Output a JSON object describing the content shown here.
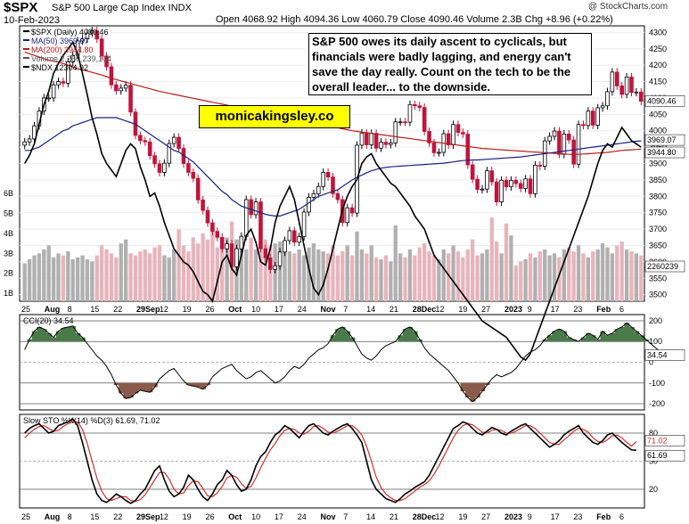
{
  "header": {
    "symbol": "$SPX",
    "name": "S&P 500 Large Cap Index INDX",
    "date": "10-Feb-2023",
    "ohlc": "Open 4068.92  High 4094.36  Low 4060.79  Close 4090.46  Volume 2.3B  Chg +8.96 (+0.22%)",
    "brand": "@ StockCharts.com"
  },
  "annotation": {
    "text": "S&P 500 owes its daily ascent to cyclicals, but financials were badly lagging, and energy can't save the day really. Count on the tech to be the  overall leader... to the downside.",
    "site": "monicakingsley.co"
  },
  "legend": {
    "main": "$SPX (Daily) 4090.46",
    "ma50": "MA(50) 3969.07",
    "ma200": "MA(200) 3944.80",
    "volume": "Volume 2,260,239,104",
    "ndx": "$NDX 12304.92",
    "cci": "CCI(20) 34.54",
    "sto": "Slow STO %K(14) %D(3) 61.69, 71.02"
  },
  "colors": {
    "up": "#000000",
    "down": "#c0143c",
    "ma50": "#1a237e",
    "ma200": "#b71c1c",
    "vol_down": "#e8b4bc",
    "vol_up": "#b0b0b0",
    "cci_fill_pos": "#4a7a4a",
    "cci_fill_neg": "#8a5a4a",
    "sto_k": "#000000",
    "sto_d": "#d32f2f",
    "site_bg": "#ffff00"
  },
  "chart_data": [
    {
      "type": "candlestick",
      "title": "$SPX (Daily)",
      "y_ticks": [
        "4300",
        "4250",
        "4200",
        "4150",
        "4100",
        "4050",
        "4000",
        "3950",
        "3900",
        "3850",
        "3800",
        "3750",
        "3700",
        "3650",
        "3600",
        "3550",
        "3500"
      ],
      "volume_ticks": [
        "6B",
        "5B",
        "4B",
        "3B",
        "2B",
        "1B"
      ],
      "last_price_label": "4090.46",
      "ma50_label": "3969.07",
      "ma200_label": "3944.80",
      "volume_label": "2260239",
      "ylim": [
        3480,
        4320
      ],
      "x_labels": [
        "25",
        "Aug",
        "8",
        "15",
        "22",
        "29Sep",
        "12",
        "19",
        "26",
        "Oct",
        "10",
        "17",
        "24",
        "Nov",
        "7",
        "14",
        "21",
        "28Dec",
        "12",
        "19",
        "27",
        "2023",
        "9",
        "17",
        "23",
        "Feb",
        "6"
      ],
      "closes": [
        3966,
        3975,
        4015,
        4060,
        4100,
        4100,
        4140,
        4150,
        4145,
        4210,
        4230,
        4274,
        4280,
        4298,
        4305,
        4280,
        4228,
        4195,
        4140,
        4122,
        4130,
        4139,
        4057,
        3986,
        3970,
        3966,
        3924,
        3899,
        3873,
        3901,
        3961,
        3980,
        3946,
        3900,
        3873,
        3855,
        3789,
        3757,
        3719,
        3693,
        3675,
        3640,
        3655,
        3585,
        3640,
        3678,
        3790,
        3744,
        3783,
        3640,
        3612,
        3577,
        3588,
        3630,
        3665,
        3695,
        3660,
        3677,
        3752,
        3797,
        3808,
        3830,
        3873,
        3859,
        3808,
        3790,
        3720,
        3765,
        3749,
        3956,
        3993,
        3957,
        3992,
        3947,
        3965,
        3958,
        3963,
        4027,
        4027,
        4026,
        4080,
        4076,
        4071,
        3998,
        3963,
        3933,
        3934,
        3991,
        3957,
        4019,
        3995,
        3990,
        3896,
        3852,
        3821,
        3822,
        3878,
        3844,
        3783,
        3849,
        3829,
        3849,
        3839,
        3824,
        3853,
        3808,
        3895,
        3892,
        3969,
        3983,
        3999,
        3928,
        3990,
        3972,
        3898,
        4019,
        4016,
        4060,
        4017,
        4070,
        4076,
        4119,
        4179,
        4137,
        4111,
        4164,
        4117,
        4118,
        4090
      ],
      "ma50": [
        3940,
        3940,
        3945,
        3950,
        3960,
        3970,
        3980,
        3990,
        4000,
        4005,
        4015,
        4020,
        4025,
        4030,
        4035,
        4040,
        4040,
        4040,
        4040,
        4040,
        4035,
        4030,
        4025,
        4020,
        4010,
        4000,
        3990,
        3980,
        3970,
        3960,
        3950,
        3940,
        3935,
        3925,
        3915,
        3905,
        3890,
        3875,
        3860,
        3845,
        3830,
        3815,
        3805,
        3790,
        3780,
        3770,
        3765,
        3760,
        3755,
        3750,
        3745,
        3742,
        3740,
        3740,
        3745,
        3750,
        3755,
        3760,
        3770,
        3780,
        3790,
        3800,
        3805,
        3810,
        3815,
        3820,
        3830,
        3840,
        3850,
        3858,
        3865,
        3872,
        3878,
        3882,
        3886,
        3888,
        3890,
        3891,
        3892,
        3893,
        3894,
        3895,
        3896,
        3897,
        3898,
        3899,
        3900,
        3901,
        3903,
        3905,
        3907,
        3909,
        3910,
        3911,
        3911,
        3912,
        3913,
        3914,
        3915,
        3916,
        3917,
        3918,
        3919,
        3920,
        3922,
        3924,
        3926,
        3928,
        3930,
        3932,
        3934,
        3936,
        3938,
        3940,
        3942,
        3944,
        3946,
        3948,
        3950,
        3952,
        3954,
        3956,
        3958,
        3960,
        3962,
        3964,
        3966,
        3968,
        3969
      ],
      "ma200": [
        4240,
        4235,
        4230,
        4225,
        4220,
        4215,
        4212,
        4210,
        4205,
        4200,
        4195,
        4190,
        4186,
        4182,
        4178,
        4174,
        4170,
        4165,
        4160,
        4156,
        4152,
        4148,
        4144,
        4140,
        4136,
        4132,
        4128,
        4124,
        4120,
        4117,
        4114,
        4111,
        4108,
        4105,
        4102,
        4099,
        4096,
        4093,
        4090,
        4087,
        4084,
        4081,
        4078,
        4075,
        4072,
        4069,
        4066,
        4063,
        4060,
        4057,
        4054,
        4051,
        4048,
        4045,
        4042,
        4039,
        4036,
        4033,
        4030,
        4027,
        4024,
        4021,
        4018,
        4015,
        4012,
        4009,
        4006,
        4003,
        4000,
        3998,
        3996,
        3994,
        3992,
        3990,
        3988,
        3986,
        3984,
        3982,
        3980,
        3978,
        3976,
        3974,
        3972,
        3970,
        3968,
        3966,
        3964,
        3962,
        3960,
        3958,
        3956,
        3954,
        3952,
        3950,
        3948,
        3946,
        3945,
        3944,
        3943,
        3942,
        3941,
        3940,
        3939,
        3938,
        3937,
        3936,
        3935,
        3934,
        3933,
        3932,
        3931,
        3930,
        3929,
        3928,
        3928,
        3928,
        3929,
        3930,
        3931,
        3932,
        3933,
        3934,
        3936,
        3938,
        3940,
        3941,
        3942,
        3943,
        3944
      ],
      "ndx_overlay": [
        3900,
        3925,
        3960,
        4020,
        4080,
        4120,
        4175,
        4205,
        4230,
        4250,
        4270,
        4235,
        4175,
        4110,
        4040,
        3990,
        3930,
        3900,
        3880,
        3860,
        3900,
        3940,
        3960,
        3945,
        3890,
        3850,
        3800,
        3810,
        3770,
        3720,
        3680,
        3640,
        3620,
        3600,
        3590,
        3570,
        3540,
        3510,
        3500,
        3480,
        3540,
        3600,
        3620,
        3580,
        3560,
        3620,
        3680,
        3700,
        3660,
        3600,
        3590,
        3640,
        3720,
        3770,
        3800,
        3830,
        3790,
        3720,
        3650,
        3580,
        3520,
        3500,
        3530,
        3580,
        3640,
        3700,
        3760,
        3800,
        3830,
        3850,
        3900,
        3920,
        3930,
        3900,
        3880,
        3860,
        3840,
        3830,
        3810,
        3790,
        3770,
        3740,
        3720,
        3700,
        3660,
        3620,
        3600,
        3580,
        3560,
        3540,
        3520,
        3500,
        3480,
        3460,
        3440,
        3420,
        3410,
        3400,
        3390,
        3380,
        3370,
        3350,
        3330,
        3310,
        3300,
        3320,
        3360,
        3400,
        3440,
        3480,
        3520,
        3560,
        3600,
        3640,
        3680,
        3720,
        3760,
        3800,
        3850,
        3900,
        3940,
        3960,
        3950,
        3980,
        4010,
        3990,
        3970,
        3960,
        3950
      ],
      "volume": [
        1.9,
        2.1,
        2.3,
        2.4,
        2.6,
        2.8,
        2.2,
        2.4,
        2.3,
        2.5,
        2.1,
        2.2,
        2.3,
        2.1,
        2.0,
        2.3,
        2.8,
        2.6,
        2.4,
        2.2,
        2.9,
        3.1,
        2.4,
        2.3,
        2.5,
        2.6,
        2.4,
        2.7,
        2.8,
        2.3,
        2.2,
        2.6,
        3.6,
        2.8,
        2.5,
        3.2,
        2.9,
        3.4,
        3.1,
        3.5,
        2.7,
        3.0,
        3.2,
        4.0,
        3.1,
        2.8,
        2.6,
        3.2,
        2.6,
        2.9,
        3.1,
        2.8,
        2.9,
        3.0,
        2.7,
        2.5,
        2.4,
        2.6,
        2.3,
        2.7,
        2.9,
        2.6,
        2.5,
        2.4,
        2.8,
        2.3,
        2.5,
        2.8,
        2.3,
        3.5,
        2.6,
        2.4,
        2.8,
        2.2,
        2.1,
        2.3,
        2.0,
        3.8,
        2.4,
        2.2,
        2.6,
        2.3,
        2.7,
        2.9,
        2.5,
        2.3,
        2.1,
        2.6,
        2.4,
        2.8,
        2.5,
        2.2,
        2.6,
        3.1,
        2.3,
        2.4,
        2.6,
        4.2,
        3.0,
        2.4,
        3.9,
        3.3,
        1.8,
        2.0,
        2.1,
        2.4,
        2.2,
        2.5,
        2.6,
        2.3,
        2.4,
        2.2,
        2.6,
        2.7,
        2.5,
        2.8,
        2.4,
        2.2,
        2.5,
        2.6,
        2.9,
        2.7,
        2.4,
        2.8,
        3.0,
        2.6,
        2.5,
        2.4,
        2.3
      ]
    },
    {
      "type": "line",
      "title": "CCI(20)",
      "y_ticks": [
        "200",
        "100",
        "0",
        "-100",
        "-200"
      ],
      "last_label": "34.54",
      "ylim": [
        -230,
        230
      ],
      "values": [
        60,
        110,
        150,
        170,
        160,
        140,
        120,
        150,
        165,
        170,
        175,
        140,
        120,
        90,
        60,
        30,
        10,
        -20,
        -60,
        -110,
        -150,
        -175,
        -170,
        -150,
        -135,
        -140,
        -145,
        -120,
        -80,
        -60,
        -40,
        -30,
        -60,
        -90,
        -110,
        -115,
        -120,
        -130,
        -110,
        -70,
        -50,
        -30,
        -20,
        -10,
        -40,
        -60,
        -80,
        -70,
        -50,
        -40,
        -60,
        -80,
        -100,
        -90,
        -70,
        -40,
        -20,
        -30,
        -10,
        20,
        40,
        60,
        70,
        90,
        130,
        160,
        170,
        150,
        120,
        80,
        40,
        20,
        10,
        30,
        60,
        80,
        90,
        100,
        130,
        160,
        170,
        150,
        110,
        70,
        40,
        20,
        0,
        -20,
        -40,
        -70,
        -100,
        -140,
        -170,
        -190,
        -170,
        -140,
        -110,
        -80,
        -60,
        -70,
        -60,
        -50,
        -30,
        0,
        30,
        50,
        60,
        80,
        110,
        130,
        150,
        160,
        150,
        120,
        110,
        100,
        120,
        140,
        130,
        110,
        150,
        130,
        140,
        160,
        170,
        190,
        170,
        150,
        130,
        110,
        90,
        70,
        50,
        34.54
      ]
    },
    {
      "type": "line",
      "title": "Slow STO %K(14) %D(3)",
      "y_ticks": [
        "80",
        "50",
        "20"
      ],
      "k_label": "61.69",
      "d_label": "71.02",
      "ylim": [
        0,
        100
      ],
      "k": [
        80,
        85,
        88,
        90,
        85,
        80,
        82,
        88,
        90,
        92,
        95,
        88,
        70,
        50,
        30,
        15,
        8,
        6,
        10,
        15,
        12,
        8,
        5,
        8,
        15,
        20,
        30,
        40,
        45,
        30,
        18,
        12,
        15,
        22,
        35,
        30,
        20,
        12,
        8,
        15,
        25,
        30,
        40,
        35,
        25,
        18,
        20,
        30,
        45,
        55,
        60,
        70,
        78,
        82,
        88,
        85,
        80,
        75,
        82,
        88,
        90,
        85,
        80,
        78,
        82,
        85,
        88,
        90,
        85,
        78,
        70,
        50,
        30,
        20,
        15,
        10,
        8,
        6,
        10,
        15,
        18,
        22,
        25,
        28,
        35,
        45,
        55,
        65,
        75,
        85,
        88,
        92,
        90,
        85,
        80,
        78,
        82,
        86,
        84,
        80,
        78,
        82,
        85,
        88,
        90,
        85,
        80,
        75,
        70,
        65,
        68,
        72,
        78,
        82,
        85,
        88,
        80,
        75,
        70,
        68,
        72,
        78,
        80,
        75,
        70,
        66,
        62,
        61.69
      ],
      "d": [
        75,
        80,
        84,
        87,
        88,
        85,
        82,
        83,
        87,
        90,
        92,
        92,
        84,
        69,
        50,
        32,
        18,
        10,
        8,
        10,
        12,
        12,
        8,
        7,
        9,
        14,
        22,
        30,
        38,
        38,
        31,
        20,
        15,
        16,
        24,
        29,
        28,
        21,
        13,
        12,
        16,
        23,
        32,
        35,
        33,
        26,
        21,
        23,
        32,
        43,
        53,
        62,
        69,
        77,
        83,
        85,
        84,
        80,
        79,
        82,
        87,
        88,
        85,
        81,
        80,
        82,
        85,
        88,
        88,
        84,
        78,
        66,
        50,
        33,
        22,
        15,
        11,
        8,
        8,
        10,
        14,
        18,
        22,
        25,
        29,
        36,
        45,
        55,
        65,
        75,
        83,
        88,
        90,
        89,
        85,
        81,
        80,
        83,
        84,
        83,
        80,
        80,
        82,
        85,
        88,
        88,
        85,
        80,
        75,
        70,
        68,
        68,
        73,
        77,
        82,
        85,
        84,
        81,
        75,
        71,
        70,
        73,
        77,
        78,
        75,
        70,
        66,
        71.02
      ]
    }
  ]
}
